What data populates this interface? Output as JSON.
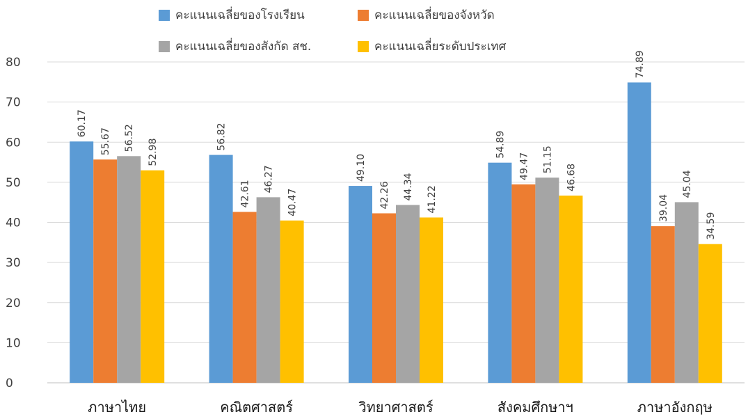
{
  "chart_data": {
    "type": "bar",
    "title": "",
    "xlabel": "",
    "ylabel": "",
    "ylim": [
      0,
      80
    ],
    "yticks": [
      0,
      10,
      20,
      30,
      40,
      50,
      60,
      70,
      80
    ],
    "grid": true,
    "legend_position": "top",
    "categories": [
      "ภาษาไทย",
      "คณิตศาสตร์",
      "วิทยาศาสตร์",
      "สังคมศึกษาฯ",
      "ภาษาอังกฤษ"
    ],
    "series": [
      {
        "name": "คะแนนเฉลี่ยของโรงเรียน",
        "color": "#5B9BD5",
        "values": [
          60.17,
          56.82,
          49.1,
          54.89,
          74.89
        ],
        "labels": [
          "60.17",
          "56.82",
          "49.10",
          "54.89",
          "74.89"
        ]
      },
      {
        "name": "คะแนนเฉลี่ยของจังหวัด",
        "color": "#ED7D31",
        "values": [
          55.67,
          42.61,
          42.26,
          49.47,
          39.04
        ],
        "labels": [
          "55.67",
          "42.61",
          "42.26",
          "49.47",
          "39.04"
        ]
      },
      {
        "name": "คะแนนเฉลี่ยของสังกัด สช.",
        "color": "#A5A5A5",
        "values": [
          56.52,
          46.27,
          44.34,
          51.15,
          45.04
        ],
        "labels": [
          "56.52",
          "46.27",
          "44.34",
          "51.15",
          "45.04"
        ]
      },
      {
        "name": "คะแนนเฉลี่ยระดับประเทศ",
        "color": "#FFC000",
        "values": [
          52.98,
          40.47,
          41.22,
          46.68,
          34.59
        ],
        "labels": [
          "52.98",
          "40.47",
          "41.22",
          "46.68",
          "34.59"
        ]
      }
    ]
  }
}
